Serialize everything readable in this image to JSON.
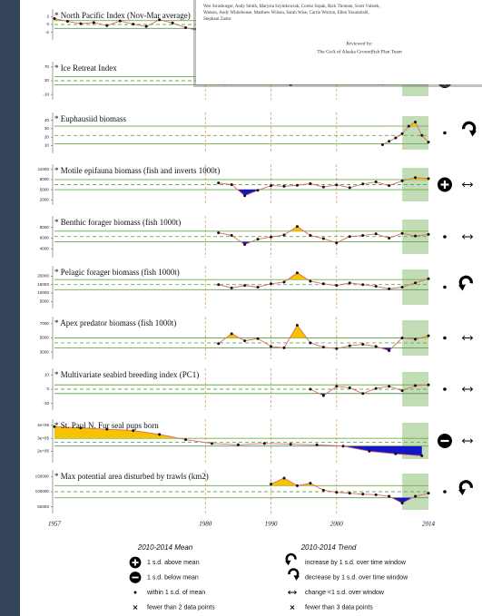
{
  "chart_data": [
    {
      "type": "line",
      "title": "* North Pacific Index (Nov-Mar average)",
      "x": [
        1957,
        1959,
        1961,
        1963,
        1965,
        1967,
        1969,
        1971,
        1973,
        1975,
        1977,
        1979,
        1981,
        1983,
        1985,
        1987,
        1989,
        1991,
        1993,
        1995,
        1997,
        1999,
        2001,
        2003,
        2005,
        2007,
        2009,
        2011,
        2013
      ],
      "values": [
        1.5,
        0.8,
        0.2,
        0.5,
        -0.3,
        0.9,
        0.1,
        -0.5,
        1.2,
        0.4,
        -0.8,
        -1.6,
        0.3,
        -0.9,
        0.2,
        0.6,
        -0.4,
        0.1,
        0.8,
        -0.2,
        0.5,
        -0.6,
        0.9,
        0.3,
        -0.1,
        0.7,
        0.2,
        -0.3,
        0.4
      ],
      "ylim": [
        -3,
        3
      ],
      "yticks": [
        2,
        0,
        -2
      ],
      "mean": 0,
      "plus_1sd": 1,
      "minus_1sd": -1
    },
    {
      "type": "line",
      "title": "* Ice Retreat Index",
      "x": [
        1979,
        1981,
        1983,
        1985,
        1987,
        1989,
        1991,
        1993,
        1995,
        1997,
        1999,
        2001,
        2003,
        2005,
        2007,
        2009,
        2011,
        2013
      ],
      "values": [
        28,
        35,
        22,
        31,
        40,
        26,
        33,
        18,
        30,
        36,
        24,
        29,
        34,
        27,
        22,
        38,
        44,
        41
      ],
      "ylim": [
        -15,
        75
      ],
      "yticks": [
        70,
        30,
        -10
      ],
      "mean": 30,
      "plus_1sd": 42,
      "minus_1sd": 18,
      "mean_status": "above",
      "trend": "decrease"
    },
    {
      "type": "line",
      "title": "* Euphausiid biomass",
      "x": [
        2007,
        2008,
        2009,
        2010,
        2011,
        2012,
        2013,
        2014
      ],
      "values": [
        11,
        15,
        19,
        24,
        33,
        38,
        22,
        14
      ],
      "ylim": [
        5,
        45
      ],
      "yticks": [
        40,
        30,
        20,
        10
      ],
      "mean": 22,
      "plus_1sd": 33,
      "minus_1sd": 12,
      "mean_status": "within",
      "trend": "decrease"
    },
    {
      "type": "line",
      "title": "* Motile epifauna biomass (fish and inverts 1000t)",
      "x": [
        1982,
        1984,
        1986,
        1988,
        1990,
        1992,
        1994,
        1996,
        1998,
        2000,
        2002,
        2004,
        2006,
        2008,
        2010,
        2012,
        2014
      ],
      "values": [
        7000,
        6500,
        3200,
        4800,
        6200,
        6000,
        6300,
        6800,
        5800,
        6400,
        5600,
        6700,
        7300,
        6200,
        7600,
        8600,
        8300
      ],
      "ylim": [
        1500,
        11500
      ],
      "yticks": [
        11000,
        8000,
        5000,
        2000
      ],
      "mean": 6500,
      "plus_1sd": 8000,
      "minus_1sd": 5000,
      "mean_status": "above",
      "trend": "flat"
    },
    {
      "type": "line",
      "title": "* Benthic forager biomass (fish 1000t)",
      "x": [
        1982,
        1984,
        1986,
        1988,
        1990,
        1992,
        1994,
        1996,
        1998,
        2000,
        2002,
        2004,
        2006,
        2008,
        2010,
        2012,
        2014
      ],
      "values": [
        7000,
        6500,
        4800,
        5800,
        6200,
        6600,
        8200,
        6500,
        5900,
        5100,
        6300,
        6500,
        6800,
        6000,
        6900,
        6400,
        6700
      ],
      "ylim": [
        3000,
        9500
      ],
      "yticks": [
        8000,
        6000,
        4000
      ],
      "mean": 6300,
      "plus_1sd": 7300,
      "minus_1sd": 5300,
      "mean_status": "within",
      "trend": "flat"
    },
    {
      "type": "line",
      "title": "* Pelagic forager biomass (fish 1000t)",
      "x": [
        1982,
        1984,
        1986,
        1988,
        1990,
        1992,
        1994,
        1996,
        1998,
        2000,
        2002,
        2004,
        2006,
        2008,
        2010,
        2012,
        2014
      ],
      "values": [
        15000,
        13000,
        14500,
        13500,
        15500,
        16500,
        22000,
        17000,
        15500,
        14500,
        16000,
        15000,
        14000,
        12500,
        13500,
        16000,
        18500
      ],
      "ylim": [
        3000,
        24000
      ],
      "yticks": [
        20000,
        15000,
        10000,
        5000
      ],
      "mean": 15000,
      "plus_1sd": 18000,
      "minus_1sd": 12000,
      "mean_status": "within",
      "trend": "increase"
    },
    {
      "type": "line",
      "title": "* Apex predator biomass (fish 1000t)",
      "x": [
        1982,
        1984,
        1986,
        1988,
        1990,
        1992,
        1994,
        1996,
        1998,
        2000,
        2002,
        2004,
        2006,
        2008,
        2010,
        2012,
        2014
      ],
      "values": [
        4200,
        5600,
        4600,
        4900,
        3800,
        3600,
        6800,
        4300,
        3700,
        3500,
        3900,
        4100,
        3800,
        3200,
        5000,
        4800,
        5300
      ],
      "ylim": [
        2500,
        7500
      ],
      "yticks": [
        7000,
        5000,
        3000
      ],
      "mean": 4300,
      "plus_1sd": 5000,
      "minus_1sd": 3600,
      "mean_status": "within",
      "trend": "flat"
    },
    {
      "type": "line",
      "title": "* Multivariate seabird breeding index (PC1)",
      "x": [
        1996,
        1998,
        2000,
        2002,
        2004,
        2006,
        2008,
        2010,
        2012,
        2014
      ],
      "values": [
        0,
        -4.5,
        2,
        1,
        -3,
        0.5,
        2,
        -1,
        2.5,
        3
      ],
      "ylim": [
        -12,
        12
      ],
      "yticks": [
        10,
        0,
        -10
      ],
      "mean": 0,
      "plus_1sd": 3,
      "minus_1sd": -3,
      "mean_status": "within",
      "trend": "flat"
    },
    {
      "type": "line",
      "title": "* St. Paul N. Fur seal pups born",
      "x": [
        1957,
        1961,
        1965,
        1969,
        1973,
        1977,
        1981,
        1985,
        1989,
        1993,
        1997,
        2001,
        2005,
        2009,
        2013
      ],
      "values": [
        390000,
        380000,
        370000,
        360000,
        330000,
        290000,
        260000,
        250000,
        260000,
        255000,
        250000,
        240000,
        200000,
        180000,
        165000
      ],
      "ylim": [
        140000,
        420000
      ],
      "yticks": [
        {
          "value": 400000,
          "label": "4e+05"
        },
        {
          "value": 300000,
          "label": "3e+05"
        },
        {
          "value": 200000,
          "label": "2e+05"
        }
      ],
      "mean": 270000,
      "plus_1sd": 300000,
      "minus_1sd": 240000,
      "mean_status": "below",
      "trend": "flat"
    },
    {
      "type": "line",
      "title": "* Max potential area disturbed by trawls (km2)",
      "x": [
        1990,
        1992,
        1994,
        1996,
        1998,
        2000,
        2002,
        2004,
        2006,
        2008,
        2010,
        2012,
        2014
      ],
      "values": [
        125000,
        145000,
        120000,
        128000,
        105000,
        98000,
        95000,
        92000,
        90000,
        85000,
        62000,
        85000,
        95000
      ],
      "ylim": [
        40000,
        160000
      ],
      "yticks": [
        150000,
        100000,
        50000
      ],
      "mean": 100000,
      "plus_1sd": 120000,
      "minus_1sd": 80000,
      "mean_status": "within",
      "trend": "increase"
    }
  ],
  "x_axis": {
    "xlim": [
      1957,
      2014
    ],
    "xticks": [
      1957,
      1980,
      1990,
      2000,
      2014
    ],
    "window": [
      2010,
      2014
    ]
  },
  "legend": {
    "mean_title": "2010-2014 Mean",
    "mean_items": [
      {
        "symbol": "above",
        "label": "1 s.d. above mean"
      },
      {
        "symbol": "below",
        "label": "1 s.d. below mean"
      },
      {
        "symbol": "within",
        "label": "within 1 s.d. of mean"
      },
      {
        "symbol": "fewer",
        "label": "fewer than 2 data points"
      }
    ],
    "trend_title": "2010-2014 Trend",
    "trend_items": [
      {
        "symbol": "increase",
        "label": "increase by 1 s.d. over time window"
      },
      {
        "symbol": "decrease",
        "label": "decrease by 1 s.d. over time window"
      },
      {
        "symbol": "flat",
        "label": "change <1 s.d. over window"
      },
      {
        "symbol": "fewer",
        "label": "fewer than 3 data points"
      }
    ]
  },
  "overlay": {
    "lines": [
      "Wes Strasburger, Andy Smith, Marysia Szymkowiak, Cortez Szpak, Rick Thoman, Scott Vulstek,",
      "Watson, Andy Whitehouse, Matthew Wilson, Sarah Wise, Carrie Worton, Ellen Yasumiishi,",
      "Stephani Zador"
    ],
    "reviewed_label": "Reviewed by:",
    "reviewed_by": "The GoA of Alaska Groundfish Plan Team"
  }
}
